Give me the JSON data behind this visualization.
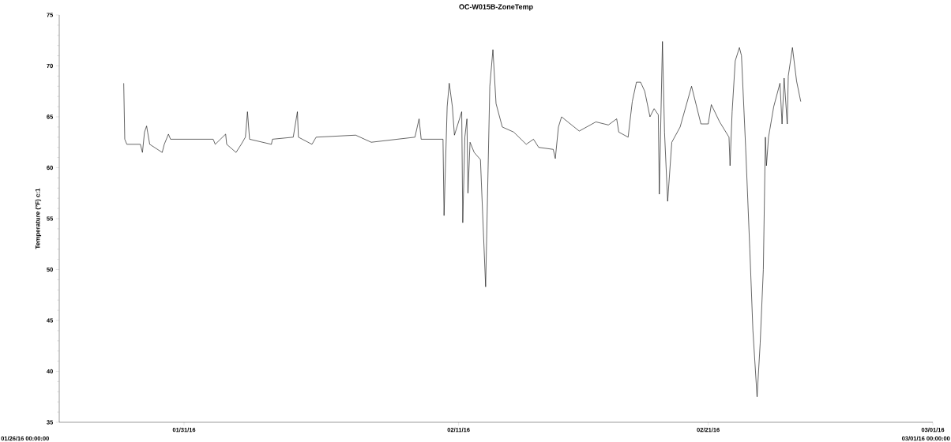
{
  "chart_data": {
    "type": "line",
    "title": "OC-W015B-ZoneTemp",
    "ylabel": "Temperature (°F) c:1",
    "annotations": [
      "01/26/16 00:00:00",
      "03/01/16 00:00:00"
    ],
    "xlim": [
      "2016-01-26T00:00",
      "2016-03-01T00:00"
    ],
    "xticks": [
      {
        "value": "2016-01-31",
        "label": "01/31/16"
      },
      {
        "value": "2016-02-11",
        "label": "02/11/16"
      },
      {
        "value": "2016-02-21",
        "label": "02/21/16"
      },
      {
        "value": "2016-03-01",
        "label": "03/01/16"
      }
    ],
    "ylim": [
      35,
      75
    ],
    "yticks": [
      35,
      40,
      45,
      50,
      55,
      60,
      65,
      70,
      75
    ],
    "grid": false,
    "marker": "none",
    "line_style": "solid",
    "series": [
      {
        "color": "#000000",
        "x": [
          "2016-01-28T14:00",
          "2016-01-28T15:00",
          "2016-01-28T17:00",
          "2016-01-29T06:00",
          "2016-01-29T08:00",
          "2016-01-29T10:00",
          "2016-01-29T12:00",
          "2016-01-29T13:00",
          "2016-01-29T15:00",
          "2016-01-30T03:00",
          "2016-01-30T05:00",
          "2016-01-30T09:00",
          "2016-01-30T11:00",
          "2016-02-01T04:00",
          "2016-02-01T06:00",
          "2016-02-01T16:00",
          "2016-02-01T17:00",
          "2016-02-02T02:00",
          "2016-02-02T07:00",
          "2016-02-02T11:00",
          "2016-02-02T13:00",
          "2016-02-02T15:00",
          "2016-02-03T12:00",
          "2016-02-03T13:00",
          "2016-02-04T09:00",
          "2016-02-04T13:00",
          "2016-02-04T14:00",
          "2016-02-05T03:00",
          "2016-02-05T07:00",
          "2016-02-06T21:00",
          "2016-02-07T12:00",
          "2016-02-09T06:00",
          "2016-02-09T10:00",
          "2016-02-09T12:00",
          "2016-02-10T09:00",
          "2016-02-10T10:00",
          "2016-02-10T13:00",
          "2016-02-10T15:00",
          "2016-02-10T18:00",
          "2016-02-10T20:00",
          "2016-02-11T03:00",
          "2016-02-11T04:00",
          "2016-02-11T06:00",
          "2016-02-11T08:00",
          "2016-02-11T09:00",
          "2016-02-11T11:00",
          "2016-02-11T15:00",
          "2016-02-11T21:00",
          "2016-02-12T02:00",
          "2016-02-12T06:00",
          "2016-02-12T09:00",
          "2016-02-12T12:00",
          "2016-02-12T18:00",
          "2016-02-13T05:00",
          "2016-02-13T17:00",
          "2016-02-14T00:00",
          "2016-02-14T05:00",
          "2016-02-14T19:00",
          "2016-02-14T21:00",
          "2016-02-15T00:00",
          "2016-02-15T03:00",
          "2016-02-15T09:00",
          "2016-02-15T20:00",
          "2016-02-16T12:00",
          "2016-02-17T00:00",
          "2016-02-17T08:00",
          "2016-02-17T10:00",
          "2016-02-17T19:00",
          "2016-02-17T23:00",
          "2016-02-18T03:00",
          "2016-02-18T07:00",
          "2016-02-18T11:00",
          "2016-02-18T16:00",
          "2016-02-18T20:00",
          "2016-02-19T00:00",
          "2016-02-19T01:00",
          "2016-02-19T04:00",
          "2016-02-19T06:00",
          "2016-02-19T09:00",
          "2016-02-19T13:00",
          "2016-02-19T21:00",
          "2016-02-20T08:00",
          "2016-02-20T17:00",
          "2016-02-21T00:00",
          "2016-02-21T03:00",
          "2016-02-21T11:00",
          "2016-02-21T20:00",
          "2016-02-21T21:00",
          "2016-02-21T23:00",
          "2016-02-22T02:00",
          "2016-02-22T06:00",
          "2016-02-22T08:00",
          "2016-02-22T12:00",
          "2016-02-22T16:00",
          "2016-02-22T19:00",
          "2016-02-22T23:00",
          "2016-02-23T02:00",
          "2016-02-23T05:00",
          "2016-02-23T07:00",
          "2016-02-23T08:00",
          "2016-02-23T10:00",
          "2016-02-23T15:00",
          "2016-02-23T21:00",
          "2016-02-23T23:00",
          "2016-02-24T01:00",
          "2016-02-24T04:00",
          "2016-02-24T05:00",
          "2016-02-24T09:00",
          "2016-02-24T13:00",
          "2016-02-24T17:00"
        ],
        "values": [
          68.3,
          62.8,
          62.3,
          62.3,
          61.5,
          63.5,
          64.1,
          63.5,
          62.3,
          61.5,
          62.3,
          63.3,
          62.8,
          62.8,
          62.3,
          63.3,
          62.3,
          61.5,
          62.3,
          63.0,
          65.5,
          62.8,
          62.3,
          62.8,
          63.0,
          65.5,
          63.0,
          62.3,
          63.0,
          63.2,
          62.5,
          63.0,
          64.8,
          62.8,
          62.8,
          55.3,
          66.0,
          68.3,
          66.0,
          63.2,
          65.5,
          54.6,
          63.0,
          64.8,
          57.5,
          62.5,
          61.5,
          60.8,
          48.3,
          68.0,
          71.6,
          66.3,
          64.0,
          63.5,
          62.3,
          62.8,
          62.0,
          61.8,
          60.9,
          64.0,
          65.0,
          64.5,
          63.6,
          64.5,
          64.2,
          64.8,
          63.5,
          63.0,
          66.5,
          68.4,
          68.4,
          67.5,
          65.0,
          65.8,
          65.2,
          57.4,
          72.4,
          63.5,
          56.7,
          62.5,
          64.0,
          68.0,
          64.3,
          64.3,
          66.2,
          64.5,
          63.0,
          60.2,
          65.5,
          70.5,
          71.8,
          71.0,
          62.0,
          52.0,
          44.0,
          37.5,
          42.8,
          50.0,
          63.0,
          60.2,
          63.0,
          66.0,
          68.3,
          64.3,
          68.8,
          64.3,
          69.0,
          71.8,
          68.5,
          66.5
        ]
      }
    ]
  }
}
